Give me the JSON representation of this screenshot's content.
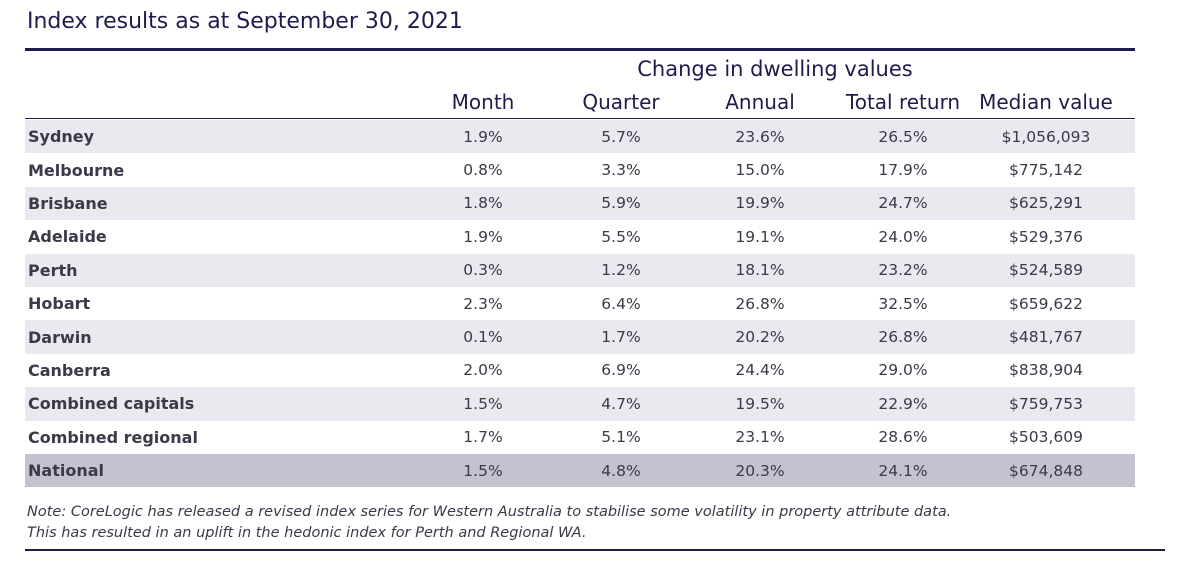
{
  "title": "Index results as at September 30, 2021",
  "group_header": "Change in dwelling values",
  "columns": [
    "Month",
    "Quarter",
    "Annual",
    "Total return",
    "Median value"
  ],
  "rows": [
    {
      "name": "Sydney",
      "month": "1.9%",
      "quarter": "5.7%",
      "annual": "23.6%",
      "total_return": "26.5%",
      "median": "$1,056,093"
    },
    {
      "name": "Melbourne",
      "month": "0.8%",
      "quarter": "3.3%",
      "annual": "15.0%",
      "total_return": "17.9%",
      "median": "$775,142"
    },
    {
      "name": "Brisbane",
      "month": "1.8%",
      "quarter": "5.9%",
      "annual": "19.9%",
      "total_return": "24.7%",
      "median": "$625,291"
    },
    {
      "name": "Adelaide",
      "month": "1.9%",
      "quarter": "5.5%",
      "annual": "19.1%",
      "total_return": "24.0%",
      "median": "$529,376"
    },
    {
      "name": "Perth",
      "month": "0.3%",
      "quarter": "1.2%",
      "annual": "18.1%",
      "total_return": "23.2%",
      "median": "$524,589"
    },
    {
      "name": "Hobart",
      "month": "2.3%",
      "quarter": "6.4%",
      "annual": "26.8%",
      "total_return": "32.5%",
      "median": "$659,622"
    },
    {
      "name": "Darwin",
      "month": "0.1%",
      "quarter": "1.7%",
      "annual": "20.2%",
      "total_return": "26.8%",
      "median": "$481,767"
    },
    {
      "name": "Canberra",
      "month": "2.0%",
      "quarter": "6.9%",
      "annual": "24.4%",
      "total_return": "29.0%",
      "median": "$838,904"
    },
    {
      "name": "Combined capitals",
      "month": "1.5%",
      "quarter": "4.7%",
      "annual": "19.5%",
      "total_return": "22.9%",
      "median": "$759,753"
    },
    {
      "name": "Combined regional",
      "month": "1.7%",
      "quarter": "5.1%",
      "annual": "23.1%",
      "total_return": "28.6%",
      "median": "$503,609"
    },
    {
      "name": "National",
      "month": "1.5%",
      "quarter": "4.8%",
      "annual": "20.3%",
      "total_return": "24.1%",
      "median": "$674,848"
    }
  ],
  "note": {
    "line1": "Note: CoreLogic has released a revised index series for Western Australia to stabilise some volatility in property attribute data.",
    "line2": "This has resulted in an uplift in the hedonic index for Perth and Regional WA."
  },
  "colors": {
    "accent": "#1e1b4d",
    "row_shade": "#ebe8f0",
    "national_shade": "#c6c1cf",
    "text": "#3a3a48"
  }
}
